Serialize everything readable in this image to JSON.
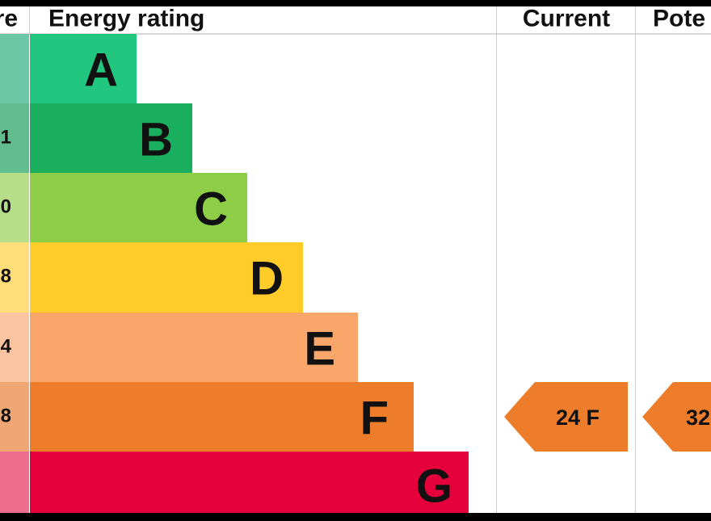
{
  "header": {
    "score_label": "re",
    "rating_label": "Energy rating",
    "current_label": "Current",
    "potential_label": "Pote"
  },
  "rows": [
    {
      "band": "A"
    },
    {
      "band": "B",
      "score": "1"
    },
    {
      "band": "C",
      "score": "0"
    },
    {
      "band": "D",
      "score": "8"
    },
    {
      "band": "E",
      "score": "4"
    },
    {
      "band": "F",
      "score": "8"
    },
    {
      "band": "G"
    }
  ],
  "current": "24 F",
  "potential": "32"
}
